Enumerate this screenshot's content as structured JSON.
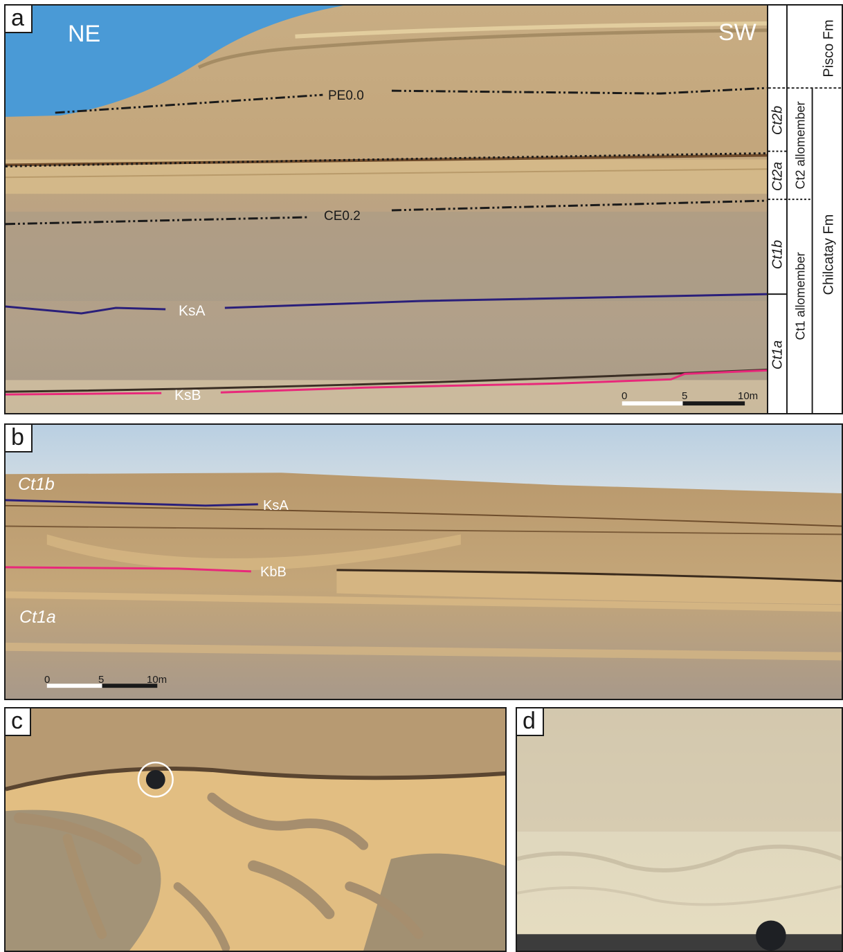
{
  "panel_a": {
    "letter": "a",
    "direction_left": "NE",
    "direction_right": "SW",
    "surfaces": {
      "pe": "PE0.0",
      "ce": "CE0.2",
      "ksa": "KsA",
      "ksb": "KsB"
    },
    "scale": {
      "t0": "0",
      "t1": "5",
      "t2": "10m"
    },
    "colors": {
      "ksa": "#2a1f7a",
      "ksb": "#e8287a",
      "sky": "#4a9ad6"
    }
  },
  "strat_column": {
    "units": {
      "ct2b": "Ct2b",
      "ct2a": "Ct2a",
      "ct1b": "Ct1b",
      "ct1a": "Ct1a"
    },
    "allomembers": {
      "ct2": "Ct2 allomember",
      "ct1": "Ct1 allomember"
    },
    "formations": {
      "pisco": "Pisco Fm",
      "chilcatay": "Chilcatay Fm"
    }
  },
  "panel_b": {
    "letter": "b",
    "unit_top": "Ct1b",
    "unit_bottom": "Ct1a",
    "surfaces": {
      "ksa": "KsA",
      "kbb": "KbB"
    },
    "scale": {
      "t0": "0",
      "t1": "5",
      "t2": "10m"
    }
  },
  "panel_c": {
    "letter": "c"
  },
  "panel_d": {
    "letter": "d"
  }
}
